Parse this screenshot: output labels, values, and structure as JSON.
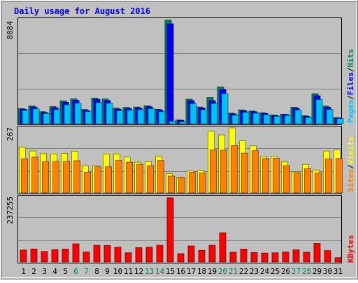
{
  "chart_data": [
    {
      "type": "bar",
      "title": "Daily usage for August 2016",
      "panel": "hits-files-pages",
      "ymax_label": "8084",
      "ylim": [
        0,
        8084
      ],
      "side_label_parts": [
        "Pages",
        "Files",
        "Hits"
      ],
      "series": [
        {
          "name": "Hits",
          "color": "#00805c",
          "values": [
            1172,
            1381,
            941,
            1331,
            1785,
            1941,
            1111,
            2000,
            1934,
            1222,
            1270,
            1300,
            1399,
            1124,
            8084,
            288,
            1914,
            1300,
            2045,
            2873,
            821,
            1074,
            983,
            844,
            665,
            745,
            1281,
            620,
            2339,
            1371,
            470
          ]
        },
        {
          "name": "Files",
          "color": "#0000ff",
          "values": [
            1126,
            1300,
            882,
            1251,
            1671,
            1818,
            1043,
            1883,
            1809,
            1143,
            1189,
            1223,
            1322,
            1060,
            7811,
            255,
            1796,
            1227,
            1795,
            2664,
            766,
            1002,
            931,
            795,
            632,
            716,
            1201,
            563,
            2182,
            1278,
            448
          ]
        },
        {
          "name": "Pages",
          "color": "#00c0ff",
          "values": [
            1040,
            1160,
            790,
            1100,
            1470,
            1600,
            940,
            1640,
            1590,
            1010,
            1050,
            1090,
            1170,
            930,
            190,
            160,
            1560,
            1080,
            1560,
            2340,
            660,
            880,
            820,
            700,
            570,
            640,
            1060,
            480,
            1880,
            1110,
            400
          ]
        }
      ]
    },
    {
      "type": "bar",
      "panel": "visits-sites",
      "ymax_label": "267",
      "ylim": [
        0,
        267
      ],
      "side_label_parts": [
        "Sites",
        "Visits"
      ],
      "series": [
        {
          "name": "Visits",
          "color": "#ffff00",
          "values": [
            188,
            172,
            161,
            160,
            162,
            171,
            111,
            112,
            160,
            160,
            147,
            126,
            128,
            150,
            79,
            64,
            90,
            92,
            253,
            238,
            267,
            214,
            193,
            148,
            150,
            127,
            86,
            117,
            94,
            172,
            176
          ]
        },
        {
          "name": "Sites",
          "color": "#ff8000",
          "values": [
            140,
            147,
            128,
            129,
            129,
            132,
            85,
            107,
            107,
            133,
            126,
            117,
            112,
            133,
            69,
            63,
            84,
            82,
            176,
            175,
            194,
            163,
            173,
            141,
            142,
            112,
            82,
            99,
            82,
            140,
            141
          ]
        }
      ]
    },
    {
      "type": "bar",
      "panel": "kbytes",
      "ymax_label": "237255",
      "ylim": [
        0,
        237255
      ],
      "side_label_parts": [
        "KBytes"
      ],
      "series": [
        {
          "name": "KBytes",
          "color": "#ff0000",
          "values": [
            44000,
            48000,
            39000,
            46000,
            48000,
            67000,
            37000,
            62000,
            61000,
            55000,
            34000,
            53000,
            55000,
            62000,
            237255,
            31000,
            59000,
            43000,
            62000,
            108000,
            36000,
            48000,
            35000,
            33000,
            34000,
            37000,
            45000,
            36000,
            68000,
            42000,
            16000
          ]
        }
      ]
    }
  ],
  "x_axis": {
    "labels": [
      "1",
      "2",
      "3",
      "4",
      "5",
      "6",
      "7",
      "8",
      "9",
      "10",
      "11",
      "12",
      "13",
      "14",
      "15",
      "16",
      "17",
      "18",
      "19",
      "20",
      "21",
      "22",
      "23",
      "24",
      "25",
      "26",
      "27",
      "28",
      "29",
      "30",
      "31"
    ],
    "weekend_days": [
      6,
      7,
      13,
      14,
      20,
      21,
      27,
      28
    ],
    "weekday_color": "#000000",
    "weekend_color": "#00805c"
  },
  "colors": {
    "background": "#c0c0c0",
    "title": "#0000ff",
    "grid": "#808080"
  }
}
